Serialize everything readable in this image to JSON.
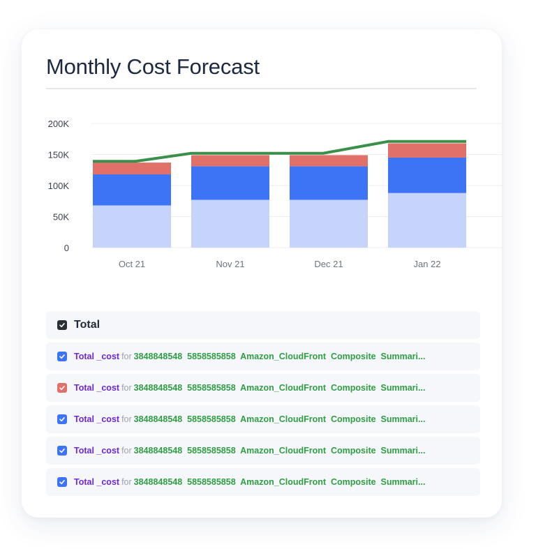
{
  "title": "Monthly Cost Forecast",
  "colors": {
    "series_base": "#c6d3fb",
    "series_mid": "#3d74f6",
    "series_top": "#e07068",
    "forecast_line": "#3a8f49",
    "checkbox_blue": "#3d74f6",
    "checkbox_red": "#e07068",
    "checkbox_dark": "#2b2f36"
  },
  "chart_data": {
    "type": "bar",
    "stacked": true,
    "categories": [
      "Oct 21",
      "Nov 21",
      "Dec 21",
      "Jan 22"
    ],
    "yticks": [
      "0",
      "50K",
      "100K",
      "150K",
      "200K"
    ],
    "ylim": [
      0,
      200000
    ],
    "series": [
      {
        "values": [
          68000,
          77000,
          77000,
          88000
        ],
        "color": "#c6d3fb"
      },
      {
        "values": [
          50000,
          54000,
          54000,
          57000
        ],
        "color": "#3d74f6"
      },
      {
        "values": [
          19000,
          18000,
          18000,
          23000
        ],
        "color": "#e07068"
      }
    ],
    "line": {
      "values": [
        139000,
        139000,
        152000,
        152000,
        152000,
        171000,
        171000
      ],
      "x_positions": [
        "Oct 21 start",
        "Oct 21 end",
        "Nov 21 start",
        "Nov 21 end",
        "Dec 21 end",
        "Jan 22 start",
        "Jan 22 end"
      ],
      "color": "#3a8f49"
    },
    "grid": true
  },
  "legend": {
    "header": {
      "label": "Total",
      "checkbox": "dark"
    },
    "items": [
      {
        "checkbox": "blue",
        "metric": "Total _cost",
        "connector": "for",
        "tags": "3848848548  5858585858  Amazon_CloudFront  Composite  Summari..."
      },
      {
        "checkbox": "red",
        "metric": "Total _cost",
        "connector": "for",
        "tags": "3848848548  5858585858  Amazon_CloudFront  Composite  Summari..."
      },
      {
        "checkbox": "blue",
        "metric": "Total _cost",
        "connector": "for",
        "tags": "3848848548  5858585858  Amazon_CloudFront  Composite  Summari..."
      },
      {
        "checkbox": "blue",
        "metric": "Total _cost",
        "connector": "for",
        "tags": "3848848548  5858585858  Amazon_CloudFront  Composite  Summari..."
      },
      {
        "checkbox": "blue",
        "metric": "Total _cost",
        "connector": "for",
        "tags": "3848848548  5858585858  Amazon_CloudFront  Composite  Summari..."
      }
    ]
  }
}
